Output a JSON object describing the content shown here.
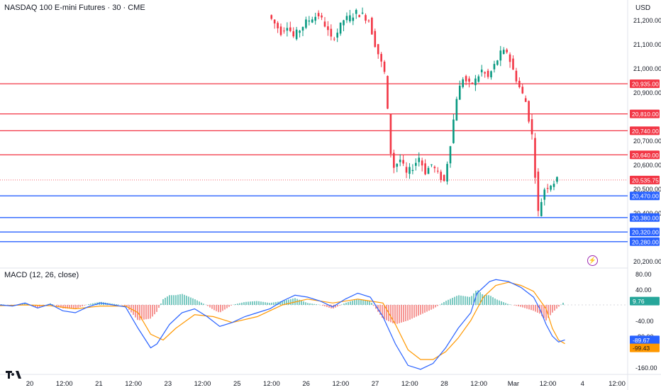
{
  "header": {
    "title": "NASDAQ 100 E-mini Futures · 30 · CME",
    "currency": "USD"
  },
  "icons": {
    "flash": "flash-icon",
    "logo": "tradingview-logo-icon"
  },
  "colors": {
    "resistance": "#f23645",
    "support": "#2962ff",
    "up": "#089981",
    "down": "#f23645",
    "macd_line": "#2962ff",
    "signal_line": "#ff9800",
    "hist_up": "#26a69a",
    "hist_down": "#ef5350"
  },
  "chart_data": {
    "type": "candlestick",
    "title": "NASDAQ 100 E-mini Futures · 30 · CME",
    "price_ticks": [
      "21,200.00",
      "21,100.00",
      "21,000.00",
      "20,900.00",
      "20,700.00",
      "20,600.00",
      "20,500.00",
      "20,400.00",
      "20,200.00"
    ],
    "price_range": [
      20200,
      21250
    ],
    "levels": [
      {
        "label": "20,935.00",
        "value": 20935,
        "kind": "resistance"
      },
      {
        "label": "20,810.00",
        "value": 20810,
        "kind": "resistance"
      },
      {
        "label": "20,740.00",
        "value": 20740,
        "kind": "resistance"
      },
      {
        "label": "20,640.00",
        "value": 20640,
        "kind": "resistance"
      },
      {
        "label": "20,470.00",
        "value": 20470,
        "kind": "support"
      },
      {
        "label": "20,380.00",
        "value": 20380,
        "kind": "support"
      },
      {
        "label": "20,320.00",
        "value": 20320,
        "kind": "support"
      },
      {
        "label": "20,280.00",
        "value": 20280,
        "kind": "support"
      }
    ],
    "last_price": {
      "label": "20,535.75",
      "value": 20535.75
    },
    "time_labels": [
      "20",
      "12:00",
      "21",
      "12:00",
      "23",
      "12:00",
      "25",
      "12:00",
      "26",
      "12:00",
      "27",
      "12:00",
      "28",
      "12:00",
      "Mar",
      "12:00",
      "4",
      "12:00"
    ],
    "price_path": [
      [
        0.43,
        21220
      ],
      [
        0.45,
        21150
      ],
      [
        0.46,
        21180
      ],
      [
        0.47,
        21130
      ],
      [
        0.48,
        21160
      ],
      [
        0.49,
        21190
      ],
      [
        0.5,
        21210
      ],
      [
        0.51,
        21220
      ],
      [
        0.52,
        21180
      ],
      [
        0.53,
        21120
      ],
      [
        0.54,
        21150
      ],
      [
        0.55,
        21200
      ],
      [
        0.56,
        21210
      ],
      [
        0.57,
        21230
      ],
      [
        0.58,
        21220
      ],
      [
        0.59,
        21200
      ],
      [
        0.6,
        21100
      ],
      [
        0.61,
        21020
      ],
      [
        0.615,
        20980
      ],
      [
        0.62,
        20820
      ],
      [
        0.625,
        20650
      ],
      [
        0.63,
        20590
      ],
      [
        0.64,
        20620
      ],
      [
        0.65,
        20560
      ],
      [
        0.66,
        20590
      ],
      [
        0.67,
        20630
      ],
      [
        0.68,
        20570
      ],
      [
        0.69,
        20600
      ],
      [
        0.7,
        20560
      ],
      [
        0.71,
        20530
      ],
      [
        0.72,
        20690
      ],
      [
        0.73,
        20880
      ],
      [
        0.74,
        20960
      ],
      [
        0.75,
        20930
      ],
      [
        0.76,
        20950
      ],
      [
        0.77,
        20990
      ],
      [
        0.78,
        20960
      ],
      [
        0.79,
        21010
      ],
      [
        0.8,
        21060
      ],
      [
        0.81,
        21070
      ],
      [
        0.82,
        20990
      ],
      [
        0.83,
        20920
      ],
      [
        0.84,
        20860
      ],
      [
        0.85,
        20720
      ],
      [
        0.855,
        20560
      ],
      [
        0.86,
        20400
      ],
      [
        0.865,
        20450
      ],
      [
        0.87,
        20500
      ],
      [
        0.88,
        20520
      ],
      [
        0.89,
        20535
      ]
    ],
    "macd": {
      "name": "MACD (12, 26, close)",
      "ticks": [
        "80.00",
        "40.00",
        "-40.00",
        "-80.00",
        "-160.00"
      ],
      "range": [
        -175,
        85
      ],
      "values": {
        "histogram": "9.76",
        "macd": "-89.67",
        "signal": "-99.43"
      },
      "macd_line": [
        [
          0.0,
          0
        ],
        [
          0.02,
          -3
        ],
        [
          0.04,
          5
        ],
        [
          0.06,
          -8
        ],
        [
          0.08,
          2
        ],
        [
          0.1,
          -15
        ],
        [
          0.12,
          -20
        ],
        [
          0.14,
          -5
        ],
        [
          0.16,
          5
        ],
        [
          0.18,
          0
        ],
        [
          0.2,
          -5
        ],
        [
          0.22,
          -60
        ],
        [
          0.24,
          -110
        ],
        [
          0.25,
          -100
        ],
        [
          0.27,
          -50
        ],
        [
          0.29,
          -20
        ],
        [
          0.31,
          -10
        ],
        [
          0.33,
          -30
        ],
        [
          0.35,
          -55
        ],
        [
          0.37,
          -45
        ],
        [
          0.39,
          -30
        ],
        [
          0.41,
          -20
        ],
        [
          0.43,
          -10
        ],
        [
          0.45,
          10
        ],
        [
          0.47,
          25
        ],
        [
          0.49,
          20
        ],
        [
          0.51,
          10
        ],
        [
          0.53,
          -5
        ],
        [
          0.55,
          15
        ],
        [
          0.57,
          30
        ],
        [
          0.59,
          20
        ],
        [
          0.61,
          -30
        ],
        [
          0.63,
          -100
        ],
        [
          0.65,
          -155
        ],
        [
          0.67,
          -165
        ],
        [
          0.69,
          -150
        ],
        [
          0.71,
          -110
        ],
        [
          0.73,
          -60
        ],
        [
          0.75,
          -20
        ],
        [
          0.76,
          30
        ],
        [
          0.78,
          60
        ],
        [
          0.79,
          65
        ],
        [
          0.81,
          60
        ],
        [
          0.83,
          45
        ],
        [
          0.85,
          20
        ],
        [
          0.86,
          -10
        ],
        [
          0.87,
          -50
        ],
        [
          0.88,
          -80
        ],
        [
          0.89,
          -95
        ],
        [
          0.9,
          -89.67
        ]
      ],
      "signal_line": [
        [
          0.0,
          -2
        ],
        [
          0.04,
          0
        ],
        [
          0.08,
          -2
        ],
        [
          0.12,
          -10
        ],
        [
          0.16,
          -3
        ],
        [
          0.2,
          -3
        ],
        [
          0.22,
          -20
        ],
        [
          0.24,
          -75
        ],
        [
          0.26,
          -90
        ],
        [
          0.28,
          -60
        ],
        [
          0.31,
          -25
        ],
        [
          0.34,
          -30
        ],
        [
          0.37,
          -45
        ],
        [
          0.41,
          -30
        ],
        [
          0.45,
          0
        ],
        [
          0.49,
          15
        ],
        [
          0.53,
          5
        ],
        [
          0.57,
          15
        ],
        [
          0.61,
          5
        ],
        [
          0.63,
          -50
        ],
        [
          0.65,
          -115
        ],
        [
          0.67,
          -140
        ],
        [
          0.69,
          -140
        ],
        [
          0.71,
          -120
        ],
        [
          0.73,
          -85
        ],
        [
          0.75,
          -40
        ],
        [
          0.77,
          20
        ],
        [
          0.79,
          50
        ],
        [
          0.81,
          58
        ],
        [
          0.83,
          50
        ],
        [
          0.85,
          35
        ],
        [
          0.87,
          -10
        ],
        [
          0.88,
          -60
        ],
        [
          0.89,
          -90
        ],
        [
          0.9,
          -99.43
        ]
      ]
    }
  }
}
